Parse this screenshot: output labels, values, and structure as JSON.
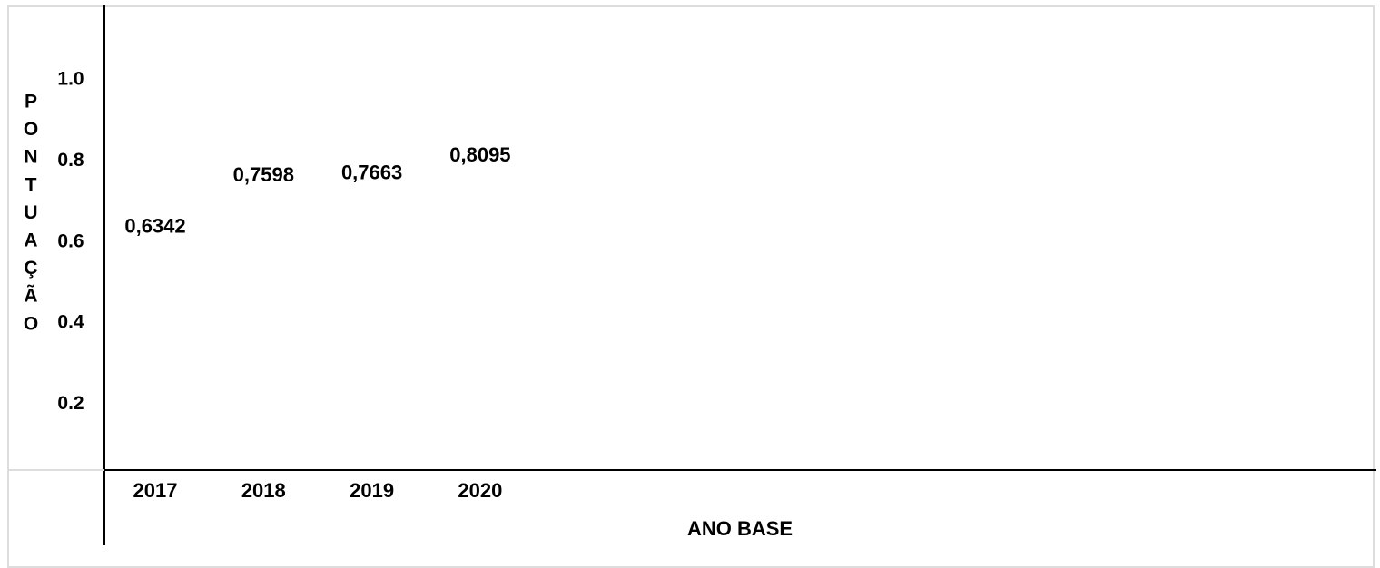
{
  "chart_data": {
    "type": "table",
    "title": "",
    "xlabel": "ANO BASE",
    "ylabel": "PONTUAÇÃO",
    "categories": [
      "2017",
      "2018",
      "2019",
      "2020"
    ],
    "values": [
      0.6342,
      0.7598,
      0.7663,
      0.8095
    ],
    "value_labels": [
      "0,6342",
      "0,7598",
      "0,7663",
      "0,8095"
    ],
    "y_ticks": [
      "1.0",
      "0.8",
      "0.6",
      "0.4",
      "0.2"
    ],
    "y_tick_values": [
      1.0,
      0.8,
      0.6,
      0.4,
      0.2
    ],
    "ylim": [
      0.1,
      1.1
    ],
    "grid": false,
    "legend": "none",
    "colors": {
      "text": "#000000",
      "axis": "#000000",
      "frame": "#dddddd",
      "background": "#ffffff"
    }
  }
}
